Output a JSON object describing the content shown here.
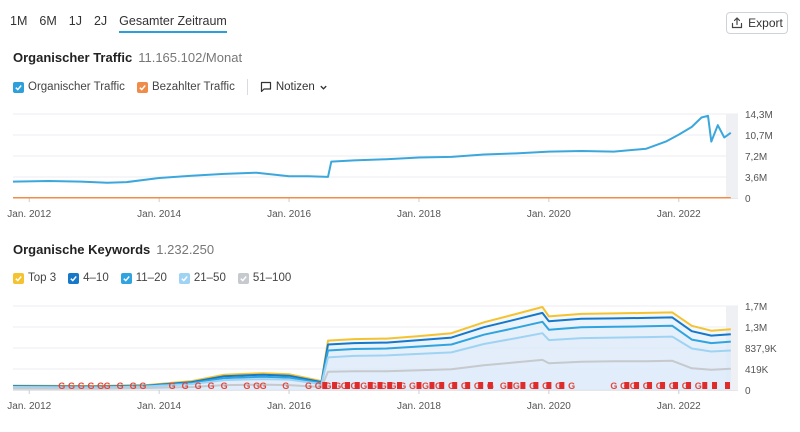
{
  "range_tabs": [
    {
      "label": "1M",
      "active": false
    },
    {
      "label": "6M",
      "active": false
    },
    {
      "label": "1J",
      "active": false
    },
    {
      "label": "2J",
      "active": false
    },
    {
      "label": "Gesamter Zeitraum",
      "active": true
    }
  ],
  "export": {
    "label": "Export",
    "icon": "export-icon"
  },
  "traffic": {
    "title": "Organischer Traffic",
    "value": "11.165.102/Monat",
    "legend": [
      {
        "label": "Organischer Traffic",
        "color": "#2d9fdb",
        "checked": true
      },
      {
        "label": "Bezahlter Traffic",
        "color": "#f08c4a",
        "checked": true
      }
    ],
    "notes_label": "Notizen",
    "notes_icon": "comment-icon",
    "chevron_icon": "chevron-down-icon"
  },
  "keywords": {
    "title": "Organische Keywords",
    "value": "1.232.250",
    "legend": [
      {
        "label": "Top 3",
        "color": "#f5c330",
        "checked": true
      },
      {
        "label": "4–10",
        "color": "#1578c9",
        "checked": true
      },
      {
        "label": "11–20",
        "color": "#2fa4df",
        "checked": true
      },
      {
        "label": "21–50",
        "color": "#9fd3f3",
        "checked": true
      },
      {
        "label": "51–100",
        "color": "#c6c9cd",
        "checked": true
      }
    ]
  },
  "chart_data": [
    {
      "type": "line",
      "title": "Organischer Traffic",
      "x_tick_labels": [
        "Jan. 2012",
        "Jan. 2014",
        "Jan. 2016",
        "Jan. 2018",
        "Jan. 2020",
        "Jan. 2022"
      ],
      "y_tick_labels": [
        "14,3M",
        "10,7M",
        "7,2M",
        "3,6M",
        "0"
      ],
      "ylim": [
        0,
        14.3
      ],
      "xlim": [
        2011.75,
        2022.85
      ],
      "grid": true,
      "series": [
        {
          "name": "Organischer Traffic",
          "color": "#3ba7dc",
          "x": [
            2011.75,
            2012.3,
            2012.8,
            2013.2,
            2013.5,
            2014.0,
            2014.5,
            2015.0,
            2015.5,
            2016.0,
            2016.3,
            2016.6,
            2016.65,
            2017.0,
            2017.5,
            2018.0,
            2018.5,
            2019.0,
            2019.5,
            2020.0,
            2020.5,
            2021.0,
            2021.5,
            2021.8,
            2022.0,
            2022.2,
            2022.35,
            2022.45,
            2022.5,
            2022.6,
            2022.7,
            2022.8
          ],
          "y": [
            2.8,
            2.9,
            2.8,
            2.6,
            2.7,
            3.4,
            3.8,
            4.1,
            4.3,
            3.7,
            3.7,
            3.6,
            6.2,
            6.4,
            6.6,
            6.9,
            7.0,
            7.4,
            7.6,
            7.9,
            8.0,
            7.9,
            8.4,
            9.6,
            10.8,
            12.1,
            13.7,
            14.0,
            9.6,
            12.4,
            10.3,
            11.1
          ]
        },
        {
          "name": "Bezahlter Traffic",
          "color": "#f08c4a",
          "x": [
            2011.75,
            2022.8
          ],
          "y": [
            0.05,
            0.05
          ]
        }
      ]
    },
    {
      "type": "area",
      "title": "Organische Keywords",
      "x_tick_labels": [
        "Jan. 2012",
        "Jan. 2014",
        "Jan. 2016",
        "Jan. 2018",
        "Jan. 2020",
        "Jan. 2022"
      ],
      "y_tick_labels": [
        "1,7M",
        "1,3M",
        "837,9K",
        "419K",
        "0"
      ],
      "ylim": [
        0,
        1.7
      ],
      "xlim": [
        2011.75,
        2022.85
      ],
      "grid": true,
      "series": [
        {
          "name": "Top 3",
          "color": "#f5c330",
          "x": [
            2011.75,
            2013.0,
            2013.8,
            2014.5,
            2015.0,
            2015.6,
            2016.0,
            2016.5,
            2016.6,
            2017.0,
            2017.5,
            2018.0,
            2018.5,
            2019.0,
            2019.5,
            2019.9,
            2020.0,
            2020.5,
            2021.0,
            2021.5,
            2021.9,
            2022.2,
            2022.5,
            2022.8
          ],
          "y": [
            0.09,
            0.08,
            0.1,
            0.18,
            0.31,
            0.34,
            0.32,
            0.18,
            1.0,
            1.03,
            1.04,
            1.09,
            1.15,
            1.37,
            1.54,
            1.68,
            1.49,
            1.54,
            1.55,
            1.56,
            1.57,
            1.3,
            1.2,
            1.23
          ]
        },
        {
          "name": "4–10",
          "color": "#1578c9",
          "x": [
            2011.75,
            2013.0,
            2013.8,
            2014.5,
            2015.0,
            2015.6,
            2016.0,
            2016.5,
            2016.6,
            2017.0,
            2017.5,
            2018.0,
            2018.5,
            2019.0,
            2019.5,
            2019.9,
            2020.0,
            2020.5,
            2021.0,
            2021.5,
            2021.9,
            2022.2,
            2022.5,
            2022.8
          ],
          "y": [
            0.08,
            0.07,
            0.09,
            0.16,
            0.28,
            0.31,
            0.29,
            0.16,
            0.92,
            0.95,
            0.96,
            1.01,
            1.06,
            1.27,
            1.43,
            1.56,
            1.39,
            1.44,
            1.45,
            1.46,
            1.47,
            1.19,
            1.1,
            1.13
          ]
        },
        {
          "name": "11–20",
          "color": "#2fa4df",
          "x": [
            2011.75,
            2013.0,
            2013.8,
            2014.5,
            2015.0,
            2015.6,
            2016.0,
            2016.5,
            2016.6,
            2017.0,
            2017.5,
            2018.0,
            2018.5,
            2019.0,
            2019.5,
            2019.9,
            2020.0,
            2020.5,
            2021.0,
            2021.5,
            2021.9,
            2022.2,
            2022.5,
            2022.8
          ],
          "y": [
            0.07,
            0.06,
            0.08,
            0.14,
            0.24,
            0.27,
            0.25,
            0.14,
            0.8,
            0.83,
            0.84,
            0.88,
            0.92,
            1.12,
            1.26,
            1.38,
            1.22,
            1.27,
            1.28,
            1.29,
            1.3,
            1.02,
            0.95,
            0.98
          ]
        },
        {
          "name": "21–50",
          "color": "#9fd3f3",
          "x": [
            2011.75,
            2013.0,
            2013.8,
            2014.5,
            2015.0,
            2015.6,
            2016.0,
            2016.5,
            2016.6,
            2017.0,
            2017.5,
            2018.0,
            2018.5,
            2019.0,
            2019.5,
            2019.9,
            2020.0,
            2020.5,
            2021.0,
            2021.5,
            2021.9,
            2022.2,
            2022.5,
            2022.8
          ],
          "y": [
            0.06,
            0.05,
            0.07,
            0.12,
            0.2,
            0.22,
            0.21,
            0.12,
            0.66,
            0.69,
            0.7,
            0.73,
            0.76,
            0.93,
            1.05,
            1.15,
            1.01,
            1.05,
            1.06,
            1.07,
            1.08,
            0.84,
            0.78,
            0.8
          ]
        },
        {
          "name": "51–100",
          "color": "#c6c9cd",
          "x": [
            2011.75,
            2013.0,
            2013.8,
            2014.5,
            2015.0,
            2015.6,
            2016.0,
            2016.5,
            2016.6,
            2017.0,
            2017.5,
            2018.0,
            2018.5,
            2019.0,
            2019.5,
            2019.9,
            2020.0,
            2020.5,
            2021.0,
            2021.5,
            2021.9,
            2022.2,
            2022.5,
            2022.8
          ],
          "y": [
            0.03,
            0.03,
            0.04,
            0.06,
            0.1,
            0.11,
            0.1,
            0.06,
            0.37,
            0.38,
            0.38,
            0.4,
            0.42,
            0.5,
            0.56,
            0.61,
            0.54,
            0.57,
            0.58,
            0.58,
            0.59,
            0.44,
            0.41,
            0.43
          ]
        }
      ],
      "google_markers": [
        2012.5,
        2012.65,
        2012.8,
        2012.95,
        2013.1,
        2013.2,
        2013.4,
        2013.6,
        2013.75,
        2014.2,
        2014.4,
        2014.6,
        2014.8,
        2015.0,
        2015.35,
        2015.5,
        2015.6,
        2015.95,
        2016.3,
        2016.45,
        2016.6,
        2016.75,
        2016.85,
        2017.0,
        2017.15,
        2017.3,
        2017.45,
        2017.6,
        2017.75,
        2017.9,
        2018.1,
        2018.3,
        2018.5,
        2018.7,
        2018.9,
        2019.1,
        2019.3,
        2019.5,
        2019.75,
        2019.95,
        2020.15,
        2020.35,
        2021.0,
        2021.15,
        2021.3,
        2021.5,
        2021.7,
        2021.9,
        2022.1,
        2022.3
      ],
      "flag_markers": [
        2016.55,
        2016.7,
        2016.9,
        2017.05,
        2017.25,
        2017.4,
        2017.55,
        2017.7,
        2018.0,
        2018.2,
        2018.35,
        2018.55,
        2018.75,
        2018.95,
        2019.1,
        2019.4,
        2019.6,
        2019.8,
        2020.0,
        2020.2,
        2021.2,
        2021.35,
        2021.55,
        2021.75,
        2021.95,
        2022.15,
        2022.4,
        2022.55,
        2022.75
      ]
    }
  ]
}
